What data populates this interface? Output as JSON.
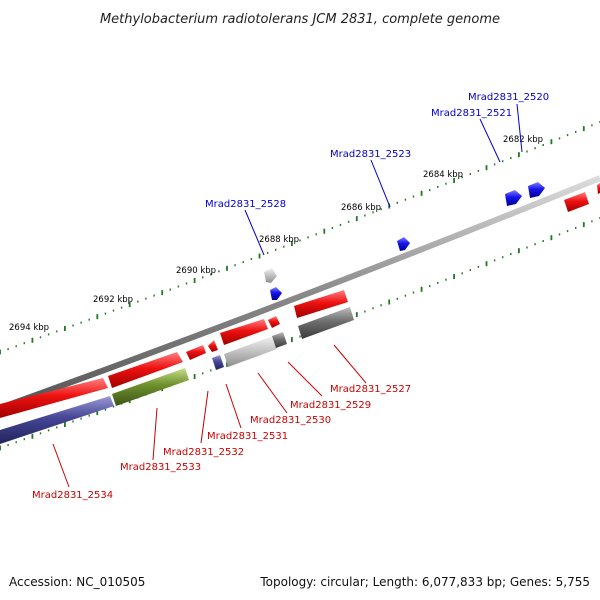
{
  "title": "Methylobacterium radiotolerans JCM 2831, complete genome",
  "footer": {
    "accession": "Accession: NC_010505",
    "topology": "Topology: circular; Length: 6,077,833 bp; Genes: 5,755"
  },
  "colors": {
    "backbone": "#8a8a8a",
    "tick": "#1e7a1e",
    "forward_label": "#0000cc",
    "reverse_label": "#cc0000",
    "cds_red": "#e01010",
    "cds_blue": "#1010e0",
    "cds_gray": "#b8b8b8",
    "cds_darkgray": "#6a6a6a",
    "cds_navy": "#3a3a8a",
    "cds_olive": "#6a8a2a"
  },
  "ticks": [
    {
      "label": "2682 kbp"
    },
    {
      "label": "2684 kbp"
    },
    {
      "label": "2686 kbp"
    },
    {
      "label": "2688 kbp"
    },
    {
      "label": "2690 kbp"
    },
    {
      "label": "2692 kbp"
    },
    {
      "label": "2694 kbp"
    }
  ],
  "forward_labels": [
    "Mrad2831_2520",
    "Mrad2831_2521",
    "Mrad2831_2523",
    "Mrad2831_2528"
  ],
  "reverse_labels": [
    "Mrad2831_2527",
    "Mrad2831_2529",
    "Mrad2831_2530",
    "Mrad2831_2531",
    "Mrad2831_2532",
    "Mrad2831_2533",
    "Mrad2831_2534"
  ]
}
